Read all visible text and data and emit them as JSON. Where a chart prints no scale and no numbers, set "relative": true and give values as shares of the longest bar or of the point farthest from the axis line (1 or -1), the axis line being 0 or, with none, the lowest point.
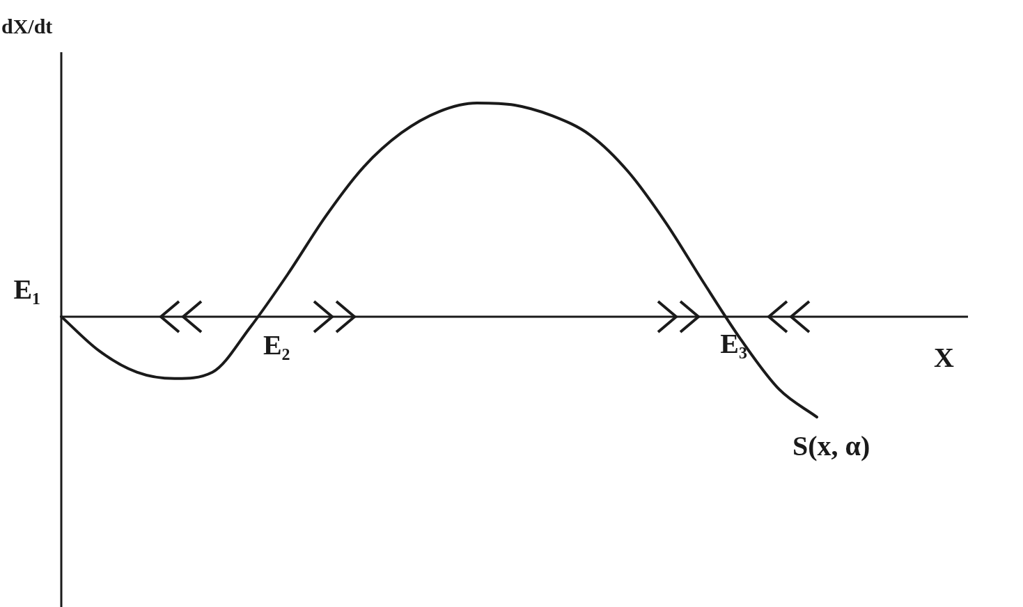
{
  "chart_data": {
    "type": "line",
    "relative": true,
    "xlabel": "X",
    "ylabel": "dX/dt",
    "categories": [
      null,
      null,
      null,
      null,
      null,
      null,
      null,
      null,
      null,
      null,
      null,
      null,
      null,
      null,
      null,
      null,
      null,
      null,
      null,
      null,
      null,
      null,
      null,
      null,
      null
    ],
    "series": [
      {
        "name": "S(x, α)",
        "color": "#1a1a1a",
        "values": [
          0,
          -0.16,
          -0.26,
          -0.29,
          -0.26,
          -0.05,
          0.2,
          0.47,
          0.7,
          0.86,
          0.96,
          1,
          0.99,
          0.94,
          0.85,
          0.68,
          0.44,
          0.16,
          -0.11,
          -0.34,
          -0.47,
          null,
          null,
          null,
          null
        ]
      }
    ],
    "annotations": [
      "E₁",
      "E₂",
      "E₃"
    ]
  }
}
